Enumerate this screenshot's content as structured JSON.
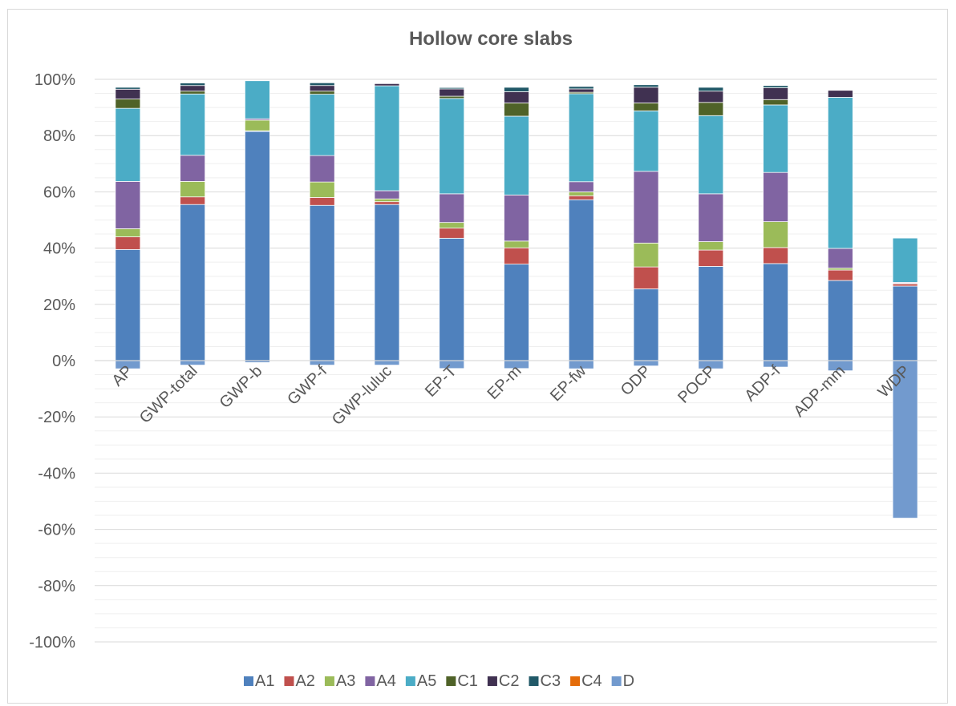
{
  "chart_data": {
    "type": "bar",
    "stacked": true,
    "title": "Hollow core slabs",
    "xlabel": "",
    "ylabel": "",
    "ylim": [
      -100,
      100
    ],
    "y_tick_labels": [
      "100%",
      "80%",
      "60%",
      "40%",
      "20%",
      "0%",
      "-20%",
      "-40%",
      "-60%",
      "-80%",
      "-100%"
    ],
    "grid": true,
    "legend_position": "bottom",
    "categories": [
      "AP",
      "GWP-total",
      "GWP-b",
      "GWP-f",
      "GWP-luluc",
      "EP-T",
      "EP-m",
      "EP-fw",
      "ODP",
      "POCP",
      "ADP-f",
      "ADP-mm",
      "WDP"
    ],
    "series": [
      {
        "name": "A1",
        "color": "#4F81BD",
        "values": [
          39.5,
          55.5,
          81.5,
          55.2,
          55.5,
          43.5,
          34.3,
          57.2,
          25.5,
          33.5,
          34.5,
          28.5,
          26.5
        ]
      },
      {
        "name": "A2",
        "color": "#C0504D",
        "values": [
          4.5,
          2.7,
          0.2,
          2.8,
          1.0,
          3.6,
          5.8,
          1.4,
          7.8,
          5.8,
          5.7,
          3.7,
          0.8
        ]
      },
      {
        "name": "A3",
        "color": "#9BBB59",
        "values": [
          2.9,
          5.5,
          3.8,
          5.5,
          1.0,
          2.0,
          2.4,
          1.4,
          8.5,
          3.0,
          9.2,
          0.7,
          0.2
        ]
      },
      {
        "name": "A4",
        "color": "#8064A2",
        "values": [
          16.8,
          9.3,
          0.5,
          9.4,
          2.9,
          10.2,
          16.4,
          3.6,
          25.5,
          17.0,
          17.5,
          7.0,
          0.3
        ]
      },
      {
        "name": "A5",
        "color": "#4BACC6",
        "values": [
          26.0,
          21.8,
          13.5,
          21.8,
          37.3,
          33.9,
          28.0,
          31.3,
          21.5,
          27.8,
          24.0,
          53.7,
          15.8
        ]
      },
      {
        "name": "C1",
        "color": "#4F6228",
        "values": [
          3.3,
          1.0,
          0.0,
          1.1,
          0.0,
          0.8,
          4.7,
          0.5,
          2.8,
          4.7,
          1.9,
          0.0,
          0.1
        ]
      },
      {
        "name": "C2",
        "color": "#403151",
        "values": [
          3.5,
          2.0,
          0.0,
          2.0,
          0.8,
          2.6,
          4.0,
          1.2,
          5.6,
          4.0,
          4.2,
          2.5,
          0.2
        ]
      },
      {
        "name": "C3",
        "color": "#215968",
        "values": [
          0.7,
          0.9,
          0.0,
          1.0,
          0.2,
          0.5,
          1.6,
          0.9,
          0.9,
          1.4,
          0.8,
          0.2,
          0.1
        ]
      },
      {
        "name": "C4",
        "color": "#E46C0A",
        "values": [
          0.1,
          0.1,
          0.0,
          0.1,
          0.1,
          0.1,
          0.1,
          0.1,
          0.1,
          0.1,
          0.1,
          0.1,
          0.0
        ]
      },
      {
        "name": "D",
        "color": "#729ACE",
        "values": [
          -2.9,
          -1.6,
          -0.7,
          -1.6,
          -1.6,
          -2.8,
          -2.8,
          -2.9,
          -1.9,
          -2.9,
          -2.3,
          -3.6,
          -56.0
        ]
      }
    ]
  }
}
